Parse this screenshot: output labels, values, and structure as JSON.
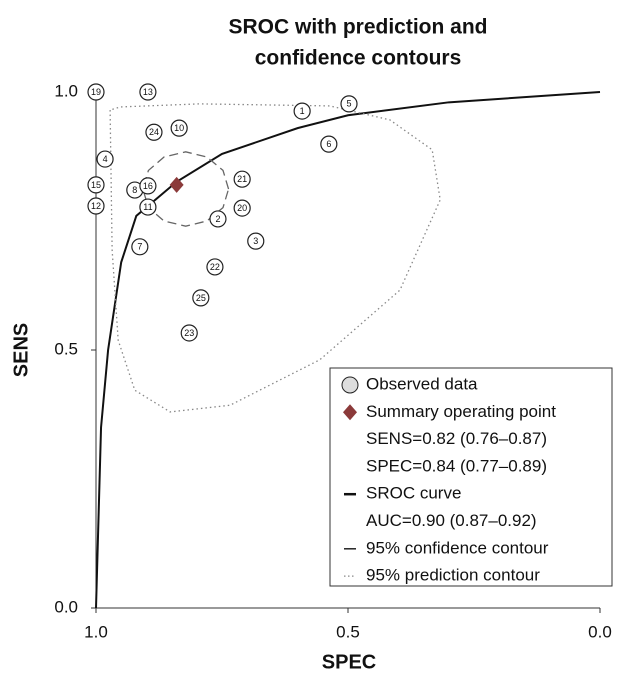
{
  "chart_data": {
    "type": "scatter",
    "title": "SROC with prediction and",
    "subtitle": "confidence contours",
    "xlabel": "SPEC",
    "ylabel": "SENS",
    "xlim": [
      1,
      0
    ],
    "ylim": [
      0,
      1
    ],
    "xticks": [
      {
        "value": 1,
        "label": "1.0"
      },
      0.5,
      {
        "value": 0,
        "label": "0.0"
      }
    ],
    "yticks": [
      {
        "value": 0,
        "label": "0.0"
      },
      0.5,
      {
        "value": 1,
        "label": "1.0"
      }
    ],
    "series": [
      {
        "name": "Observed data",
        "kind": "points",
        "color": "#222222",
        "labels": [
          "19",
          "13",
          "1",
          "5",
          "6",
          "10",
          "24",
          "4",
          "15",
          "12",
          "8",
          "16",
          "11",
          "21",
          "20",
          "2",
          "3",
          "7",
          "22",
          "25",
          "23"
        ],
        "x": [
          1.0,
          0.897,
          0.591,
          0.498,
          0.538,
          0.835,
          0.885,
          0.982,
          1.0,
          1.0,
          0.923,
          0.897,
          0.897,
          0.71,
          0.71,
          0.758,
          0.683,
          0.913,
          0.764,
          0.792,
          0.815
        ],
        "values": [
          1.0,
          1.0,
          0.963,
          0.977,
          0.899,
          0.93,
          0.922,
          0.87,
          0.82,
          0.779,
          0.81,
          0.818,
          0.777,
          0.831,
          0.775,
          0.754,
          0.711,
          0.7,
          0.661,
          0.601,
          0.533
        ]
      },
      {
        "name": "Summary operating point",
        "kind": "diamond",
        "color": "#8b3a3a",
        "x": [
          0.84
        ],
        "values": [
          0.82
        ],
        "notes": [
          "SENS=0.82 (0.76–0.87)",
          "SPEC=0.84 (0.77–0.89)"
        ]
      },
      {
        "name": "SROC curve",
        "kind": "line",
        "color": "#111111",
        "x": [
          1.0,
          0.99,
          0.976,
          0.95,
          0.92,
          0.84,
          0.75,
          0.6,
          0.5,
          0.3,
          0.0
        ],
        "values": [
          0.0,
          0.35,
          0.5,
          0.67,
          0.76,
          0.826,
          0.88,
          0.93,
          0.955,
          0.98,
          1.0
        ],
        "notes": [
          "AUC=0.90 (0.87–0.92)"
        ]
      },
      {
        "name": "95% confidence contour",
        "kind": "dashed",
        "color": "#666666",
        "x": [
          0.737,
          0.748,
          0.78,
          0.822,
          0.865,
          0.896,
          0.907,
          0.896,
          0.865,
          0.822,
          0.78,
          0.748
        ],
        "values": [
          0.812,
          0.848,
          0.874,
          0.884,
          0.874,
          0.848,
          0.812,
          0.776,
          0.75,
          0.74,
          0.75,
          0.776
        ]
      },
      {
        "name": "95% prediction contour",
        "kind": "dotted",
        "color": "#888888",
        "x": [
          0.972,
          0.968,
          0.956,
          0.923,
          0.853,
          0.734,
          0.556,
          0.397,
          0.317,
          0.333,
          0.417,
          0.536,
          0.794,
          0.952
        ],
        "values": [
          0.965,
          0.694,
          0.519,
          0.422,
          0.38,
          0.393,
          0.481,
          0.616,
          0.791,
          0.888,
          0.946,
          0.973,
          0.977,
          0.971
        ]
      }
    ]
  }
}
